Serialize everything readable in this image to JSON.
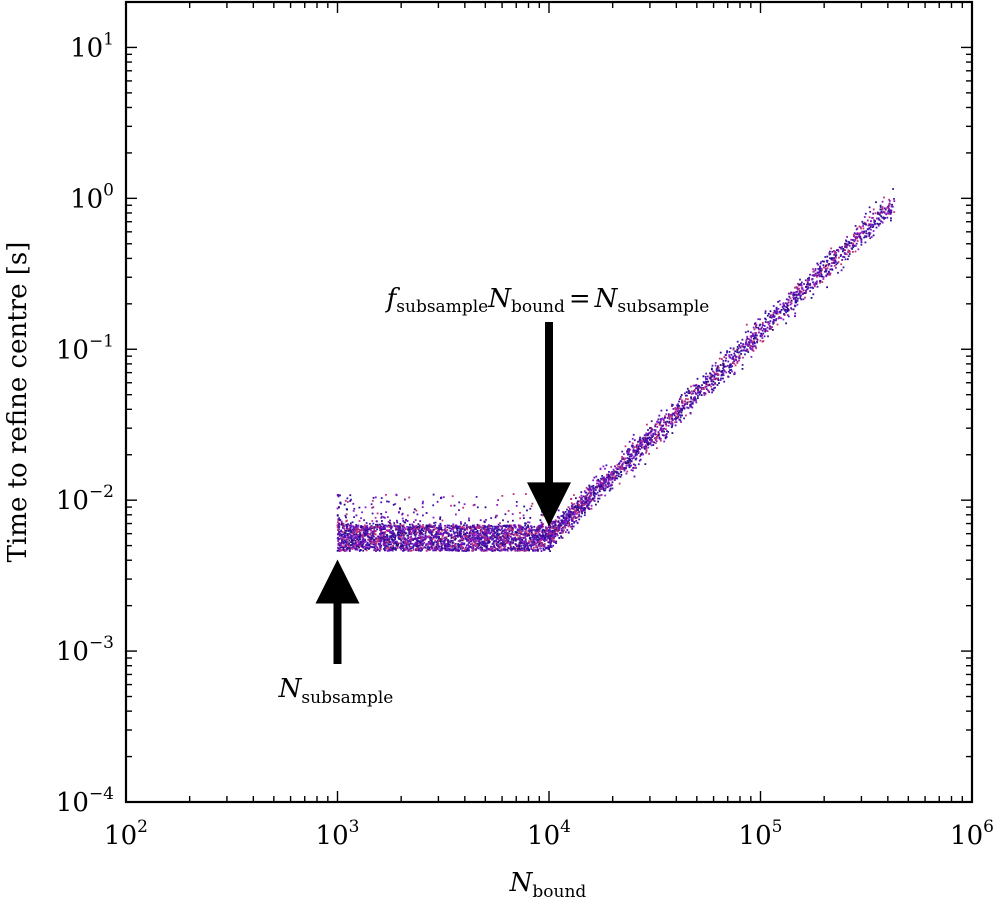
{
  "chart_data": {
    "type": "scatter",
    "xscale": "log",
    "yscale": "log",
    "xlim": [
      100,
      1000000
    ],
    "ylim": [
      0.0001,
      20
    ],
    "x_ticks": [
      {
        "base": "10",
        "exp": "2"
      },
      {
        "base": "10",
        "exp": "3"
      },
      {
        "base": "10",
        "exp": "4"
      },
      {
        "base": "10",
        "exp": "5"
      },
      {
        "base": "10",
        "exp": "6"
      }
    ],
    "y_ticks": [
      {
        "base": "10",
        "exp": "−4"
      },
      {
        "base": "10",
        "exp": "−3"
      },
      {
        "base": "10",
        "exp": "−2"
      },
      {
        "base": "10",
        "exp": "−1"
      },
      {
        "base": "10",
        "exp": "0"
      },
      {
        "base": "10",
        "exp": "1"
      }
    ],
    "xlabel": {
      "main": "N",
      "sub": "bound"
    },
    "ylabel": "Time to refine centre [s]",
    "grid": false,
    "marker_colors": [
      "#2b0a8a",
      "#5a10b4",
      "#8a1cc8",
      "#c0307a",
      "#3b16a8"
    ],
    "trend": [
      {
        "x": 1000,
        "y": 0.0057
      },
      {
        "x": 10000,
        "y": 0.0057
      },
      {
        "x": 430000,
        "y": 0.95
      }
    ],
    "flat_band": {
      "x": [
        1000,
        10000
      ],
      "y": [
        0.0046,
        0.0068
      ]
    },
    "outliers": {
      "x": [
        1000,
        10000
      ],
      "y": [
        0.0068,
        0.011
      ]
    },
    "annotations": [
      {
        "id": "n_subsample",
        "x": 1000,
        "y": 0.0043,
        "label": {
          "main": "N",
          "sub": "subsample"
        }
      },
      {
        "id": "f_relation",
        "x": 10000,
        "y": 0.0065,
        "label": {
          "f": "f",
          "f_sub": "subsample",
          "n1": "N",
          "n1_sub": "bound",
          "eq": "=",
          "n2": "N",
          "n2_sub": "subsample"
        }
      }
    ]
  }
}
